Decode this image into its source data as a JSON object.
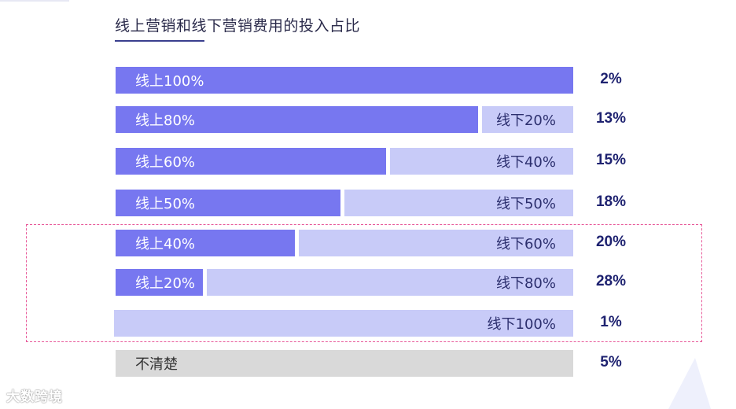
{
  "title": "线上营销和线下营销费用的投入占比",
  "watermark": "大数跨境",
  "colors": {
    "online": "#7777f0",
    "offline": "#c8cbf8",
    "unknown": "#d9d9d9",
    "value_text": "#1e2270",
    "highlight_border": "#e85a9a"
  },
  "chart_data": {
    "type": "bar",
    "stacked": true,
    "orientation": "horizontal",
    "title": "线上营销和线下营销费用的投入占比",
    "rows": [
      {
        "online_label": "线上100%",
        "offline_label": "",
        "online_pct": 100,
        "offline_pct": 0,
        "unknown_label": "",
        "share": "2%"
      },
      {
        "online_label": "线上80%",
        "offline_label": "线下20%",
        "online_pct": 80,
        "offline_pct": 20,
        "unknown_label": "",
        "share": "13%"
      },
      {
        "online_label": "线上60%",
        "offline_label": "线下40%",
        "online_pct": 60,
        "offline_pct": 40,
        "unknown_label": "",
        "share": "15%"
      },
      {
        "online_label": "线上50%",
        "offline_label": "线下50%",
        "online_pct": 50,
        "offline_pct": 50,
        "unknown_label": "",
        "share": "18%"
      },
      {
        "online_label": "线上40%",
        "offline_label": "线下60%",
        "online_pct": 40,
        "offline_pct": 60,
        "unknown_label": "",
        "share": "20%"
      },
      {
        "online_label": "线上20%",
        "offline_label": "线下80%",
        "online_pct": 20,
        "offline_pct": 80,
        "unknown_label": "",
        "share": "28%"
      },
      {
        "online_label": "",
        "offline_label": "线下100%",
        "online_pct": 0,
        "offline_pct": 100,
        "unknown_label": "",
        "share": "1%"
      },
      {
        "online_label": "",
        "offline_label": "",
        "online_pct": 0,
        "offline_pct": 0,
        "unknown_label": "不清楚",
        "share": "5%"
      }
    ],
    "highlighted_rows": [
      4,
      5,
      6
    ]
  }
}
